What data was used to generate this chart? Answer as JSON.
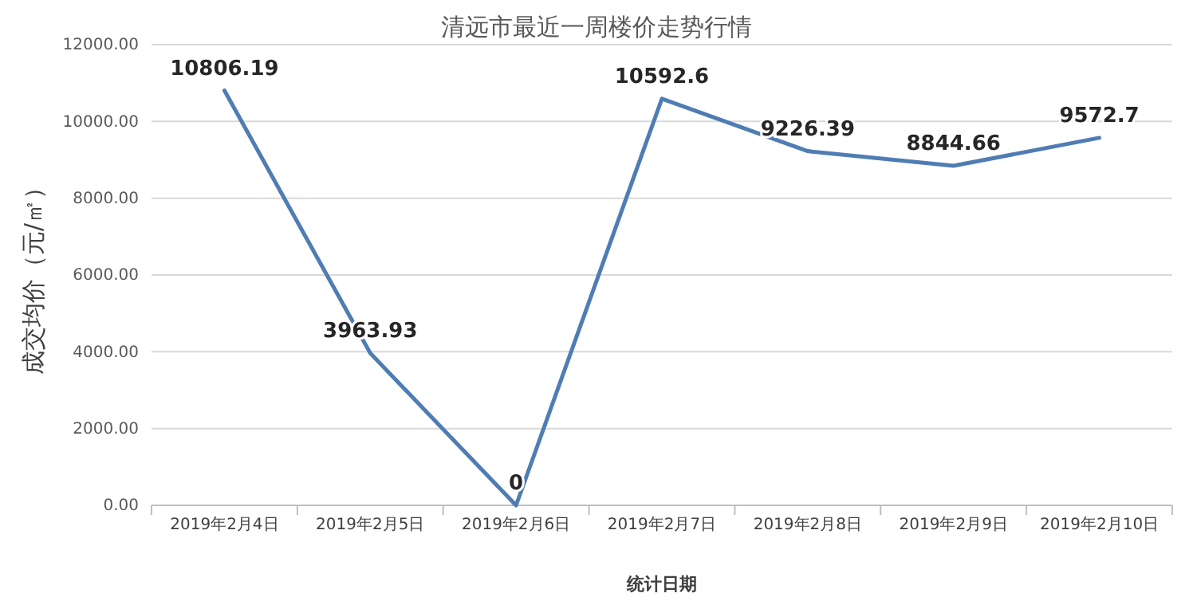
{
  "chart_data": {
    "type": "line",
    "title": "清远市最近一周楼价走势行情",
    "xlabel": "统计日期",
    "ylabel": "成交均价（元/㎡）",
    "categories": [
      "2019年2月4日",
      "2019年2月5日",
      "2019年2月6日",
      "2019年2月7日",
      "2019年2月8日",
      "2019年2月9日",
      "2019年2月10日"
    ],
    "series": [
      {
        "color": "#4f7db3",
        "values": [
          10806.19,
          3963.93,
          0,
          10592.6,
          9226.39,
          8844.66,
          9572.7
        ]
      }
    ],
    "ylim": [
      0,
      12000
    ],
    "yticks": [
      {
        "value": 0,
        "label": "0.00"
      },
      {
        "value": 2000,
        "label": "2000.00"
      },
      {
        "value": 4000,
        "label": "4000.00"
      },
      {
        "value": 6000,
        "label": "6000.00"
      },
      {
        "value": 8000,
        "label": "8000.00"
      },
      {
        "value": 10000,
        "label": "10000.00"
      },
      {
        "value": 12000,
        "label": "12000.00"
      }
    ],
    "grid": "y",
    "data_labels": true,
    "marker": "none",
    "line_style": "solid"
  }
}
